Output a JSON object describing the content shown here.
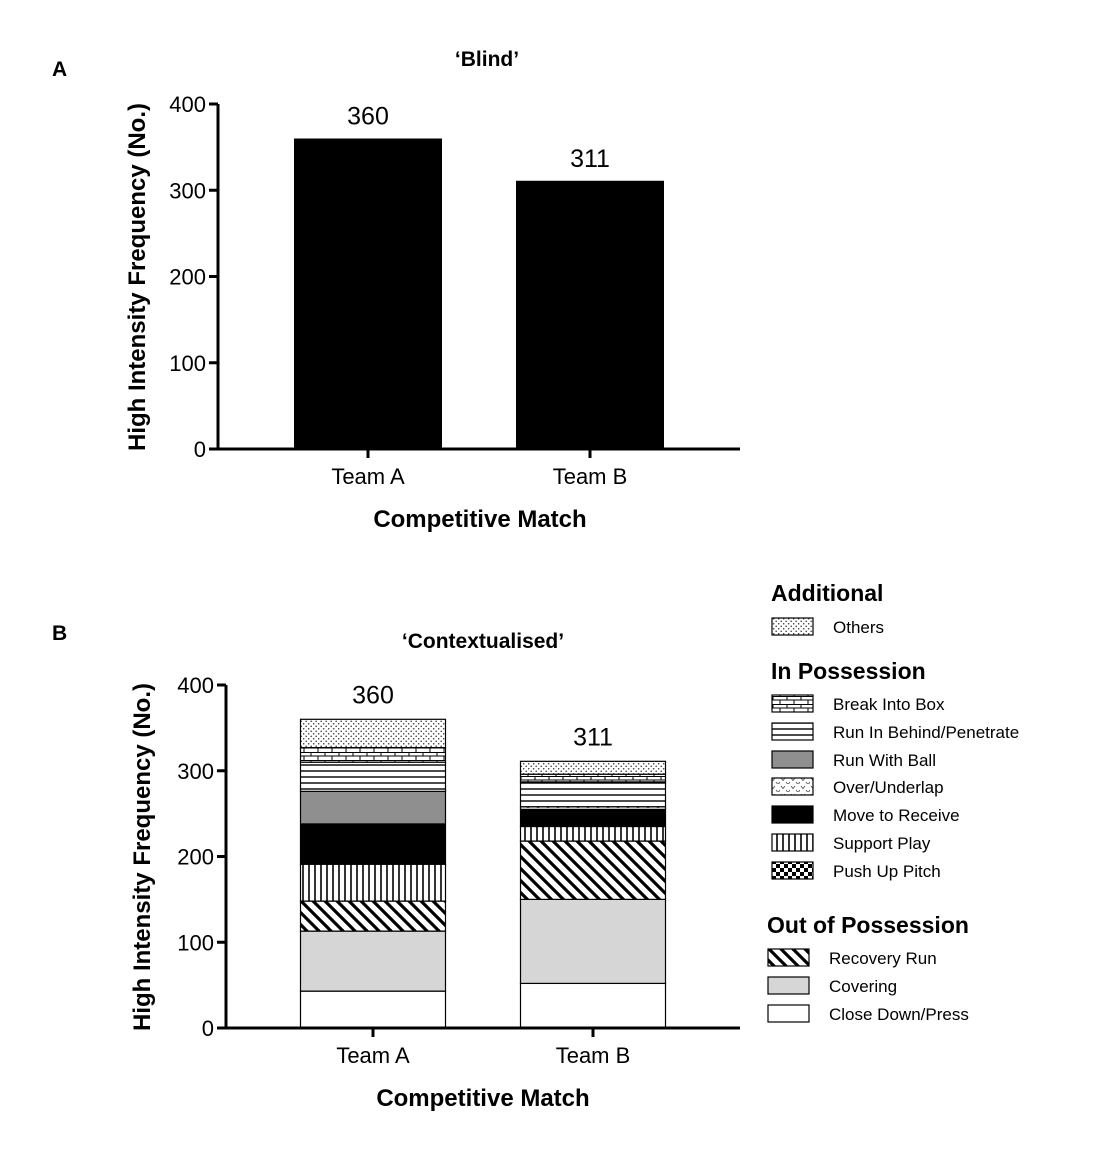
{
  "chart_data": [
    {
      "panel": "A",
      "type": "bar",
      "title": "‘Blind’",
      "xlabel": "Competitive Match",
      "ylabel": "High Intensity Frequency (No.)",
      "categories": [
        "Team A",
        "Team B"
      ],
      "values": [
        360,
        311
      ],
      "data_labels": [
        "360",
        "311"
      ],
      "ylim": [
        0,
        400
      ],
      "yticks": [
        0,
        100,
        200,
        300,
        400
      ],
      "bar_color": "#000000",
      "grid": false
    },
    {
      "panel": "B",
      "type": "bar",
      "stacked": true,
      "title": "‘Contextualised’",
      "xlabel": "Competitive Match",
      "ylabel": "High Intensity Frequency (No.)",
      "categories": [
        "Team A",
        "Team B"
      ],
      "totals": [
        "360",
        "311"
      ],
      "ylim": [
        0,
        400
      ],
      "yticks": [
        0,
        100,
        200,
        300,
        400
      ],
      "grid": false,
      "legend_position": "right",
      "series": [
        {
          "name": "Close Down/Press",
          "group": "Out of Possession",
          "pattern": "solid-white",
          "values": [
            43,
            52
          ]
        },
        {
          "name": "Covering",
          "group": "Out of Possession",
          "pattern": "solid-lightgray",
          "values": [
            70,
            98
          ]
        },
        {
          "name": "Recovery Run",
          "group": "Out of Possession",
          "pattern": "diagonal",
          "values": [
            35,
            68
          ]
        },
        {
          "name": "Push Up Pitch",
          "group": "In Possession",
          "pattern": "checker",
          "values": [
            0,
            0
          ]
        },
        {
          "name": "Support Play",
          "group": "In Possession",
          "pattern": "vertical",
          "values": [
            43,
            17
          ]
        },
        {
          "name": "Move to Receive",
          "group": "In Possession",
          "pattern": "solid-black",
          "values": [
            47,
            20
          ]
        },
        {
          "name": "Over/Underlap",
          "group": "In Possession",
          "pattern": "dots",
          "values": [
            0,
            3
          ]
        },
        {
          "name": "Run With Ball",
          "group": "In Possession",
          "pattern": "solid-gray",
          "values": [
            38,
            0
          ]
        },
        {
          "name": "Run In Behind/Penetrate",
          "group": "In Possession",
          "pattern": "horizontal",
          "values": [
            34,
            29
          ]
        },
        {
          "name": "Break Into Box",
          "group": "In Possession",
          "pattern": "brick",
          "values": [
            17,
            9
          ]
        },
        {
          "name": "Others",
          "group": "Additional",
          "pattern": "stipple",
          "values": [
            33,
            15
          ]
        }
      ],
      "legend": [
        {
          "heading": "Additional",
          "items": [
            "Others"
          ]
        },
        {
          "heading": "In Possession",
          "items": [
            "Break Into Box",
            "Run In Behind/Penetrate",
            "Run With Ball",
            "Over/Underlap",
            "Move to Receive",
            "Support Play",
            "Push Up Pitch"
          ]
        },
        {
          "heading": "Out of Possession",
          "items": [
            "Recovery Run",
            "Covering",
            "Close Down/Press"
          ]
        }
      ]
    }
  ]
}
